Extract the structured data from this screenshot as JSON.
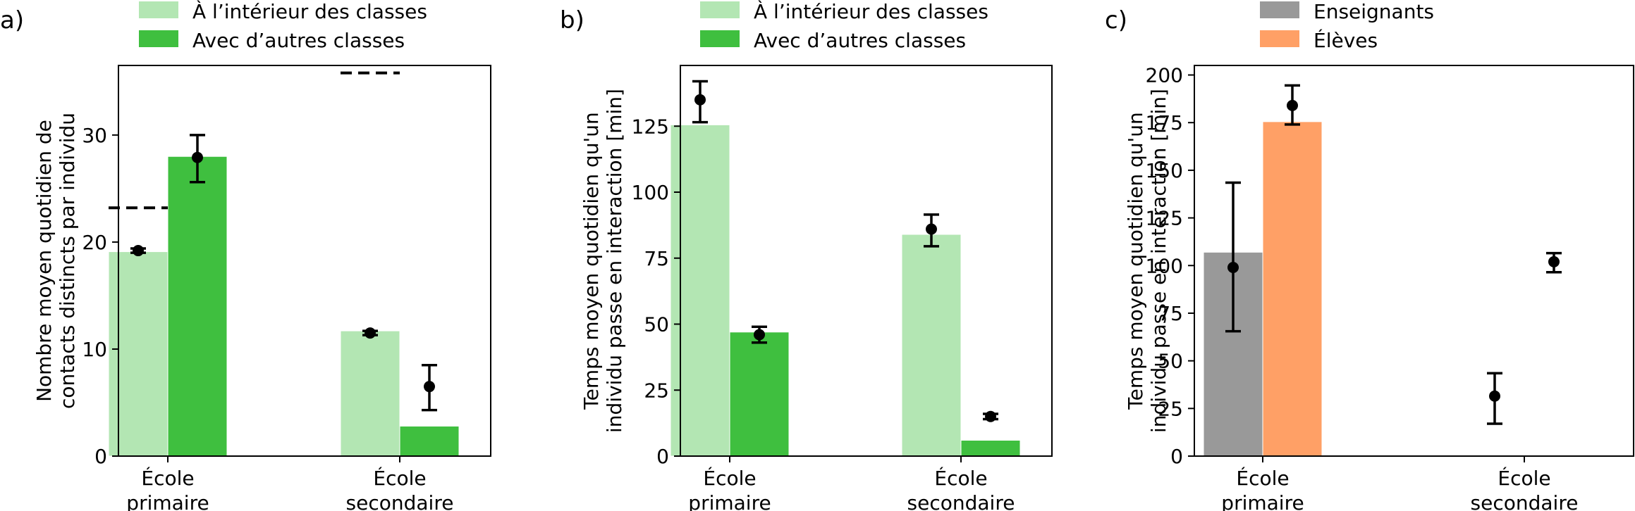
{
  "chart_data": [
    {
      "type": "bar",
      "panel_label": "a)",
      "ylabel": "Nombre moyen quotidien de\ncontacts distincts par individu",
      "xlabel": "",
      "categories": [
        "École\nprimaire",
        "École\nsecondaire"
      ],
      "ylim": [
        0,
        36.5
      ],
      "yticks": [
        0,
        10,
        20,
        30
      ],
      "grid": false,
      "legend": "top-left, outside above axes",
      "series": [
        {
          "name": "À l’intérieur des classes",
          "color": "#b3e6b3",
          "values": [
            19.1,
            11.7
          ],
          "markers": [
            19.2,
            11.5
          ],
          "err_low": [
            19.0,
            11.3
          ],
          "err_high": [
            19.4,
            11.7
          ]
        },
        {
          "name": "Avec d’autres classes",
          "color": "#3fbf3f",
          "values": [
            28.0,
            2.8
          ],
          "markers": [
            27.9,
            6.5
          ],
          "err_low": [
            25.6,
            4.3
          ],
          "err_high": [
            30.0,
            8.5
          ]
        }
      ],
      "reference_lines": [
        {
          "category_index": 0,
          "value": 23.2
        },
        {
          "category_index": 1,
          "value": 35.8
        }
      ]
    },
    {
      "type": "bar",
      "panel_label": "b)",
      "ylabel": "Temps moyen quotidien qu'un\nindividu passe en interaction [min]",
      "xlabel": "",
      "categories": [
        "École\nprimaire",
        "École\nsecondaire"
      ],
      "ylim": [
        0,
        148
      ],
      "yticks": [
        0,
        25,
        50,
        75,
        100,
        125
      ],
      "grid": false,
      "legend": "top-left, outside above axes",
      "series": [
        {
          "name": "À l’intérieur des classes",
          "color": "#b3e6b3",
          "values": [
            125.5,
            84.0
          ],
          "markers": [
            135.0,
            86.0
          ],
          "err_low": [
            126.5,
            79.5
          ],
          "err_high": [
            142.0,
            91.5
          ]
        },
        {
          "name": "Avec d’autres classes",
          "color": "#3fbf3f",
          "values": [
            47.0,
            6.0
          ],
          "markers": [
            46.0,
            15.0
          ],
          "err_low": [
            43.0,
            14.0
          ],
          "err_high": [
            49.0,
            16.0
          ]
        }
      ]
    },
    {
      "type": "bar",
      "panel_label": "c)",
      "ylabel": "Temps moyen quotidien qu'un\nindividu passe en interaction [min]",
      "xlabel": "",
      "categories": [
        "École\nprimaire",
        "École\nsecondaire"
      ],
      "ylim": [
        0,
        205
      ],
      "yticks": [
        0,
        25,
        50,
        75,
        100,
        125,
        150,
        175,
        200
      ],
      "grid": false,
      "legend": "top-left, outside above axes",
      "series": [
        {
          "name": "Enseignants",
          "color": "#999999",
          "values": [
            107.0,
            0
          ],
          "markers": [
            99.0,
            31.5
          ],
          "err_low": [
            65.5,
            17.0
          ],
          "err_high": [
            143.5,
            43.5
          ]
        },
        {
          "name": "Élèves",
          "color": "#ffa066",
          "values": [
            175.5,
            0
          ],
          "markers": [
            184.0,
            102.0
          ],
          "err_low": [
            174.0,
            96.5
          ],
          "err_high": [
            194.5,
            106.5
          ]
        }
      ]
    }
  ]
}
